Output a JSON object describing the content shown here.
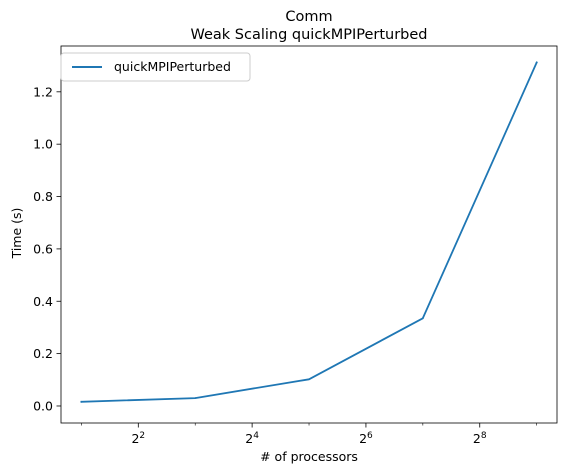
{
  "chart_data": {
    "type": "line",
    "title": "Comm",
    "subtitle": "Weak Scaling quickMPIPerturbed",
    "xlabel": "# of processors",
    "ylabel": "Time (s)",
    "x_scale": "log2",
    "x_ticks": [
      {
        "value": 4,
        "base": "2",
        "exp": "2"
      },
      {
        "value": 16,
        "base": "2",
        "exp": "4"
      },
      {
        "value": 64,
        "base": "2",
        "exp": "6"
      },
      {
        "value": 256,
        "base": "2",
        "exp": "8"
      }
    ],
    "y_ticks": [
      {
        "value": 0.0,
        "label": "0.0"
      },
      {
        "value": 0.2,
        "label": "0.2"
      },
      {
        "value": 0.4,
        "label": "0.4"
      },
      {
        "value": 0.6,
        "label": "0.6"
      },
      {
        "value": 0.8,
        "label": "0.8"
      },
      {
        "value": 1.0,
        "label": "1.0"
      },
      {
        "value": 1.2,
        "label": "1.2"
      }
    ],
    "xlim": [
      1.56,
      656
    ],
    "ylim": [
      -0.065,
      1.375
    ],
    "grid": false,
    "legend_position": "upper-left",
    "series": [
      {
        "name": "quickMPIPerturbed",
        "color": "#1f77b4",
        "x": [
          2,
          8,
          32,
          128,
          512
        ],
        "y": [
          0.016,
          0.03,
          0.102,
          0.335,
          1.312
        ]
      }
    ]
  }
}
